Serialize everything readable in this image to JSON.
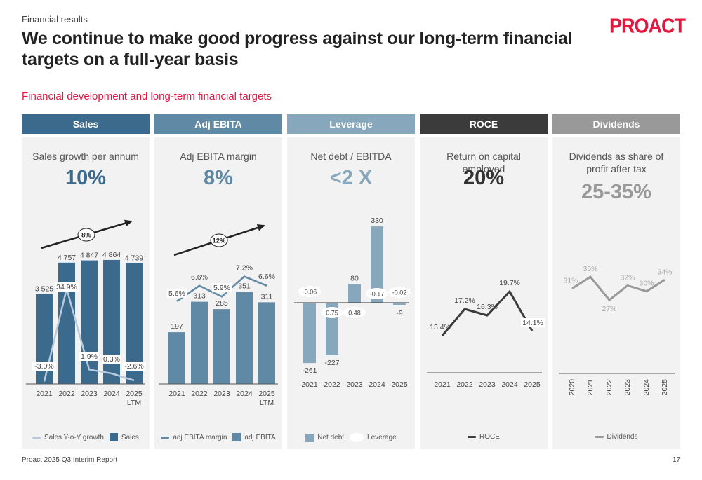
{
  "header": {
    "section": "Financial results",
    "title": "We continue to make good progress against our long-term financial targets on a full-year basis",
    "subtitle": "Financial development and long-term financial targets",
    "logo": "PROACT"
  },
  "colors": {
    "sales": "#3b6a8c",
    "adj_ebita": "#5f89a5",
    "leverage": "#87a7bd",
    "roce": "#3b3b3b",
    "dividends": "#999999",
    "sales_growth_line": "#b8cadc",
    "brand_red": "#e5173f",
    "panel_bg": "#f2f2f2"
  },
  "panels": [
    {
      "id": "sales",
      "header": "Sales",
      "kpi_label": "Sales growth per annum",
      "kpi_value": "10%",
      "legend": [
        {
          "label": "Sales Y-o-Y growth",
          "kind": "line",
          "color": "#b8cadc"
        },
        {
          "label": "Sales",
          "kind": "box",
          "color": "#3b6a8c"
        }
      ]
    },
    {
      "id": "adj_ebita",
      "header": "Adj EBITA",
      "kpi_label": "Adj EBITA margin",
      "kpi_value": "8%",
      "legend": [
        {
          "label": "adj EBITA margin",
          "kind": "line",
          "color": "#5f89a5"
        },
        {
          "label": "adj EBITA",
          "kind": "box",
          "color": "#5f89a5"
        }
      ]
    },
    {
      "id": "leverage",
      "header": "Leverage",
      "kpi_label": "Net debt / EBITDA",
      "kpi_value": "<2 X",
      "legend": [
        {
          "label": "Net debt",
          "kind": "box",
          "color": "#87a7bd"
        },
        {
          "label": "Leverage",
          "kind": "ellipse",
          "color": "#ffffff"
        }
      ]
    },
    {
      "id": "roce",
      "header": "ROCE",
      "kpi_label": "Return on capital employed",
      "kpi_value": "20%",
      "legend": [
        {
          "label": "ROCE",
          "kind": "line",
          "color": "#3b3b3b"
        }
      ]
    },
    {
      "id": "dividends",
      "header": "Dividends",
      "kpi_label": "Dividends as share of profit after tax",
      "kpi_value": "25-35%",
      "legend": [
        {
          "label": "Dividends",
          "kind": "line",
          "color": "#999999"
        }
      ]
    }
  ],
  "chart_data": [
    {
      "id": "sales",
      "type": "bar",
      "title": "Sales",
      "categories": [
        "2021",
        "2022",
        "2023",
        "2024",
        "2025 LTM"
      ],
      "series": [
        {
          "name": "Sales",
          "type": "bar",
          "values": [
            3525,
            4757,
            4847,
            4864,
            4739
          ],
          "labels": [
            "3 525",
            "4 757",
            "4 847",
            "4 864",
            "4 739"
          ]
        },
        {
          "name": "Sales Y-o-Y growth",
          "type": "line",
          "values": [
            -3.0,
            34.9,
            1.9,
            0.3,
            -2.6
          ],
          "labels": [
            "-3.0%",
            "34.9%",
            "1.9%",
            "0.3%",
            "-2.6%"
          ]
        }
      ],
      "trend_annotation": "8%"
    },
    {
      "id": "adj_ebita",
      "type": "bar",
      "title": "Adj EBITA",
      "categories": [
        "2021",
        "2022",
        "2023",
        "2024",
        "2025 LTM"
      ],
      "series": [
        {
          "name": "adj EBITA",
          "type": "bar",
          "values": [
            197,
            313,
            285,
            351,
            311
          ],
          "labels": [
            "197",
            "313",
            "285",
            "351",
            "311"
          ]
        },
        {
          "name": "adj EBITA margin",
          "type": "line",
          "values": [
            5.6,
            6.6,
            5.9,
            7.2,
            6.6
          ],
          "labels": [
            "5.6%",
            "6.6%",
            "5.9%",
            "7.2%",
            "6.6%"
          ]
        }
      ],
      "trend_annotation": "12%"
    },
    {
      "id": "leverage",
      "type": "bar",
      "title": "Leverage",
      "categories": [
        "2021",
        "2022",
        "2023",
        "2024",
        "2025"
      ],
      "series": [
        {
          "name": "Net debt",
          "type": "bar",
          "values": [
            -261,
            -227,
            80,
            330,
            -9
          ],
          "labels": [
            "-261",
            "-227",
            "80",
            "330",
            "-9"
          ]
        },
        {
          "name": "Leverage",
          "type": "label",
          "values": [
            -0.06,
            0.75,
            0.48,
            -0.17,
            -0.02
          ],
          "labels": [
            "-0.06",
            "0.75",
            "0.48",
            "-0.17",
            "-0.02"
          ]
        }
      ]
    },
    {
      "id": "roce",
      "type": "line",
      "title": "ROCE",
      "categories": [
        "2021",
        "2022",
        "2023",
        "2024",
        "2025"
      ],
      "series": [
        {
          "name": "ROCE",
          "type": "line",
          "values": [
            13.4,
            17.2,
            16.3,
            19.7,
            14.1
          ],
          "labels": [
            "13.4%",
            "17.2%",
            "16.3%",
            "19.7%",
            "14.1%"
          ]
        }
      ]
    },
    {
      "id": "dividends",
      "type": "line",
      "title": "Dividends",
      "categories": [
        "2020",
        "2021",
        "2022",
        "2023",
        "2024",
        "2025"
      ],
      "series": [
        {
          "name": "Dividends",
          "type": "line",
          "values": [
            31,
            35,
            27,
            32,
            30,
            34
          ],
          "labels": [
            "31%",
            "35%",
            "27%",
            "32%",
            "30%",
            "34%"
          ]
        }
      ]
    }
  ],
  "footer": {
    "report": "Proact 2025 Q3 Interim Report",
    "page": "17"
  }
}
